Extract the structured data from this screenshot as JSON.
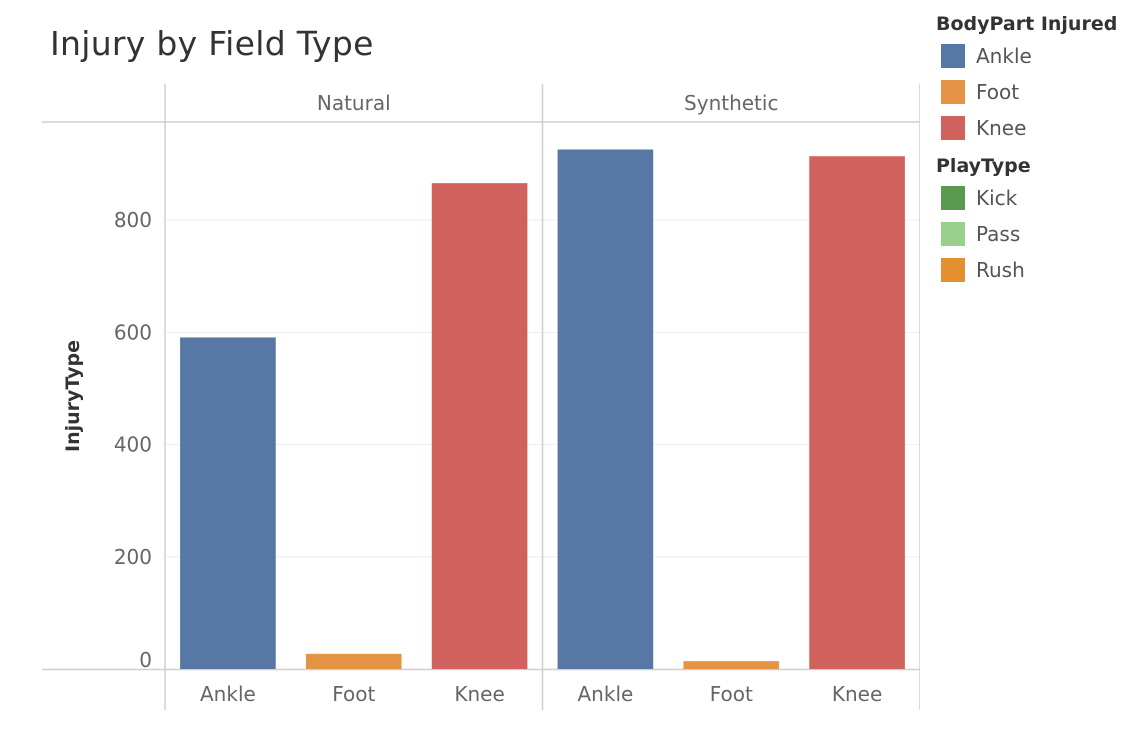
{
  "title": "Injury by Field Type",
  "chart_data": {
    "type": "bar",
    "title": "Injury by Field Type",
    "ylabel": "InjuryType",
    "xlabel": "",
    "ylim": [
      0,
      975
    ],
    "yticks": [
      0,
      200,
      400,
      600,
      800
    ],
    "grid": true,
    "legend_position": "right",
    "panels": [
      {
        "name": "Natural",
        "categories": [
          "Ankle",
          "Foot",
          "Knee"
        ],
        "values": [
          591,
          27,
          866
        ]
      },
      {
        "name": "Synthetic",
        "categories": [
          "Ankle",
          "Foot",
          "Knee"
        ],
        "values": [
          926,
          14,
          914
        ]
      }
    ],
    "colors": {
      "Ankle": "#5778a4",
      "Foot": "#e49444",
      "Knee": "#d1615d"
    }
  },
  "legend": {
    "sections": [
      {
        "title": "BodyPart Injured",
        "items": [
          {
            "label": "Ankle",
            "color": "#5778a4"
          },
          {
            "label": "Foot",
            "color": "#e49444"
          },
          {
            "label": "Knee",
            "color": "#d1615d"
          }
        ]
      },
      {
        "title": "PlayType",
        "items": [
          {
            "label": "Kick",
            "color": "#5a9a4f"
          },
          {
            "label": "Pass",
            "color": "#99d08d"
          },
          {
            "label": "Rush",
            "color": "#e49030"
          }
        ]
      }
    ]
  }
}
